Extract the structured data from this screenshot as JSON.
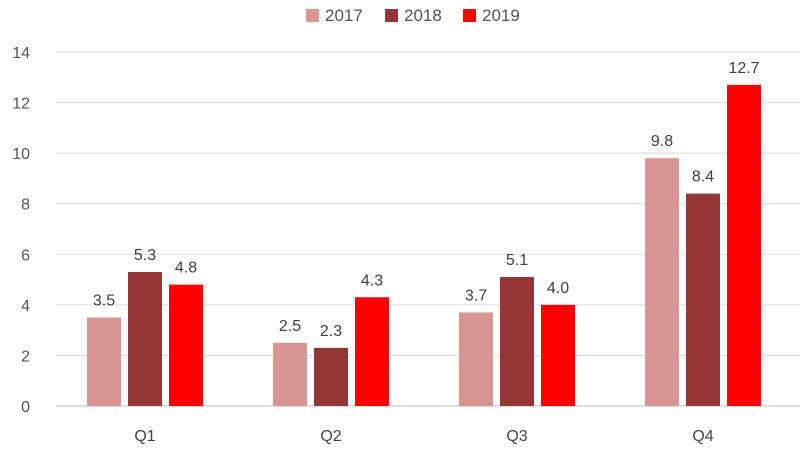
{
  "chart_data": {
    "type": "bar",
    "categories": [
      "Q1",
      "Q2",
      "Q3",
      "Q4"
    ],
    "series": [
      {
        "name": "2017",
        "color": "#d99594",
        "values": [
          3.5,
          2.5,
          3.7,
          9.8
        ],
        "labels": [
          "3.5",
          "2.5",
          "3.7",
          "9.8"
        ]
      },
      {
        "name": "2018",
        "color": "#943634",
        "values": [
          5.3,
          2.3,
          5.1,
          8.4
        ],
        "labels": [
          "5.3",
          "2.3",
          "5.1",
          "8.4"
        ]
      },
      {
        "name": "2019",
        "color": "#ff0000",
        "values": [
          4.8,
          4.3,
          4.0,
          12.7
        ],
        "labels": [
          "4.8",
          "4.3",
          "4.0",
          "12.7"
        ]
      }
    ],
    "ylim": [
      0,
      14
    ],
    "yticks": [
      "0",
      "2",
      "4",
      "6",
      "8",
      "10",
      "12",
      "14"
    ],
    "title": "",
    "xlabel": "",
    "ylabel": "",
    "grid": true,
    "legend_position": "top-center"
  }
}
